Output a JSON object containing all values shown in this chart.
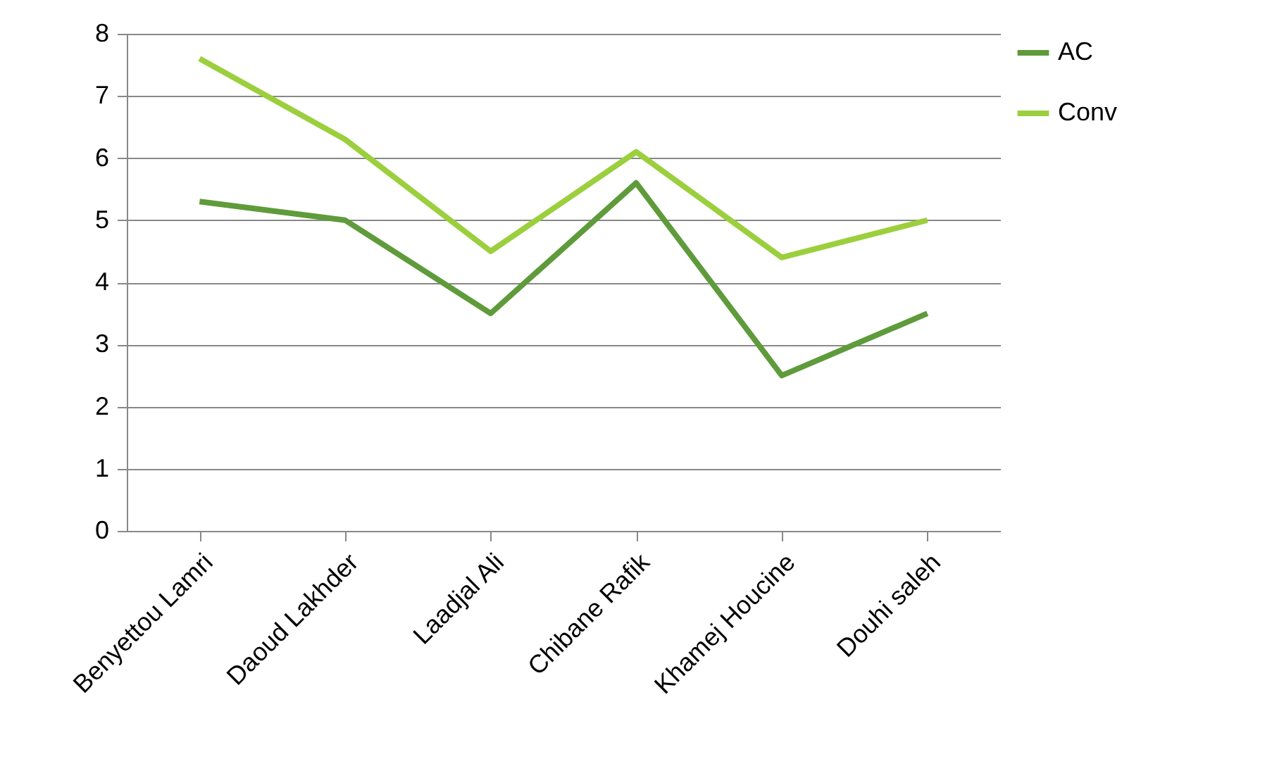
{
  "chart_data": {
    "type": "line",
    "categories": [
      "Benyettou Lamri",
      "Daoud Lakhder",
      "Laadjal Ali",
      "Chibane Rafik",
      "Khamej Houcine",
      "Douhi saleh"
    ],
    "series": [
      {
        "name": "AC",
        "color": "#5f9b3b",
        "values": [
          5.3,
          5.0,
          3.5,
          5.6,
          2.5,
          3.5
        ]
      },
      {
        "name": "Conv",
        "color": "#9bcf3d",
        "values": [
          7.6,
          6.3,
          4.5,
          6.1,
          4.4,
          5.0
        ]
      }
    ],
    "ylim": [
      0,
      8
    ],
    "yticks": [
      0,
      1,
      2,
      3,
      4,
      5,
      6,
      7,
      8
    ],
    "grid": "y",
    "legend": "right",
    "marker": "none",
    "line_style": "solid"
  }
}
